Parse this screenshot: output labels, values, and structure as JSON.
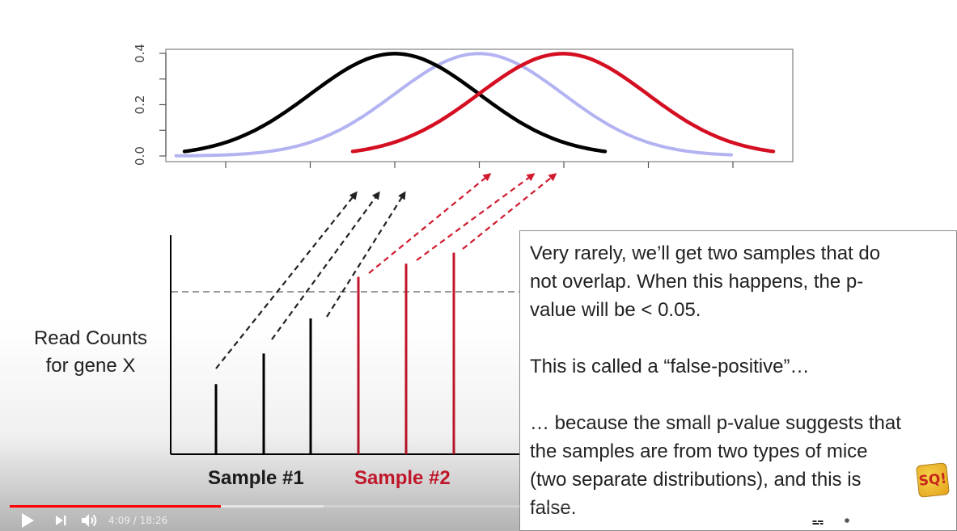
{
  "chart": {
    "y_ticks": [
      "0.0",
      "0.2",
      "0.4"
    ],
    "x_tick_count": 7,
    "curves": [
      {
        "name": "black",
        "color": "#000000",
        "mean": 0.0
      },
      {
        "name": "light-blue",
        "color": "#b3b3f2",
        "mean": 1.0
      },
      {
        "name": "red",
        "color": "#d50f22",
        "mean": 2.0
      }
    ]
  },
  "bars": {
    "sample1": [
      0.32,
      0.46,
      0.62
    ],
    "sample2": [
      0.81,
      0.87,
      0.92
    ],
    "threshold": 0.75,
    "sample1_color": "#000000",
    "sample2_color": "#c2172b"
  },
  "labels": {
    "y_axis_line1": "Read Counts",
    "y_axis_line2": "for gene X",
    "sample1": "Sample #1",
    "sample2": "Sample #2"
  },
  "caption": {
    "p1_line1": "Very rarely, we’ll get two samples that do",
    "p1_line2": "not overlap. When this happens, the p-",
    "p1_line3": "value will be < 0.05.",
    "p2_line1": "This is called a “false-positive”…",
    "p3_line1": "… because the small p-value suggests that",
    "p3_line2": "the samples are from two types of mice",
    "p3_line3": "(two separate distributions), and this is",
    "p3_line4": "false."
  },
  "logo": {
    "text": "SQ!"
  },
  "player": {
    "current_time": "4:09",
    "separator": " / ",
    "duration": "18:26",
    "progress_fraction": 0.2252,
    "buffered_fraction": 0.335
  }
}
